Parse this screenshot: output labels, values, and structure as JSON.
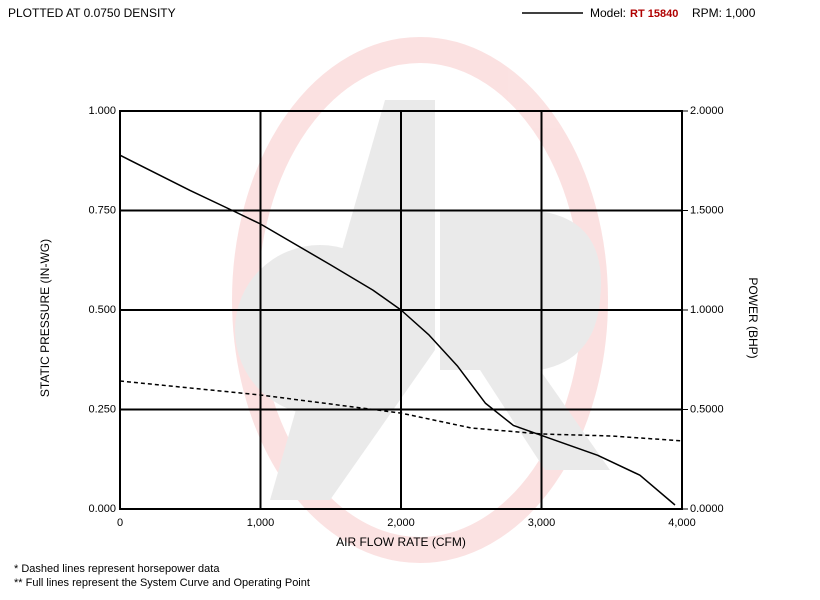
{
  "chart_data": {
    "type": "line",
    "note_top": "PLOTTED AT 0.0750 DENSITY",
    "legend": {
      "model_label": "Model:",
      "model": "RT 15840",
      "rpm": "RPM: 1,000"
    },
    "xlabel": "AIR FLOW RATE (CFM)",
    "ylabel": "STATIC PRESSURE (IN-WG)",
    "y2label": "POWER (BHP)",
    "footnotes": [
      "* Dashed lines represent horsepower data",
      "** Full lines represent the System Curve and Operating Point"
    ],
    "xlim": [
      0,
      4000
    ],
    "xticks": [
      0,
      {
        "value": 1000,
        "label": "1,000"
      },
      {
        "value": 2000,
        "label": "2,000"
      },
      {
        "value": 3000,
        "label": "3,000"
      },
      {
        "value": 4000,
        "label": "4,000"
      }
    ],
    "ylim": [
      0,
      1
    ],
    "yticks": [
      {
        "value": 0,
        "label": "0.000"
      },
      {
        "value": 0.25,
        "label": "0.250"
      },
      {
        "value": 0.5,
        "label": "0.500"
      },
      {
        "value": 0.75,
        "label": "0.750"
      },
      {
        "value": 1,
        "label": "1.000"
      }
    ],
    "y2lim": [
      0,
      2
    ],
    "y2ticks": [
      {
        "value": 0,
        "label": "0.0000"
      },
      {
        "value": 0.5,
        "label": "0.5000"
      },
      {
        "value": 1,
        "label": "1.0000"
      },
      {
        "value": 1.5,
        "label": "1.5000"
      },
      {
        "value": 2,
        "label": "2.0000"
      }
    ],
    "grid": true,
    "series": [
      {
        "color": "#000000",
        "dash": false,
        "x": [
          0,
          500,
          800,
          1000,
          1500,
          1800,
          2000,
          2200,
          2400,
          2600,
          2800,
          3000,
          3400,
          3700,
          3950
        ],
        "values": [
          0.889,
          0.8,
          0.75,
          0.716,
          0.613,
          0.55,
          0.5,
          0.437,
          0.36,
          0.266,
          0.21,
          0.185,
          0.135,
          0.085,
          0.01
        ]
      },
      {
        "color": "#000000",
        "dash": true,
        "axis": "y2",
        "x": [
          0,
          1000,
          2000,
          2500,
          3000,
          3500,
          4000
        ],
        "values": [
          0.643,
          0.573,
          0.482,
          0.407,
          0.377,
          0.367,
          0.342
        ]
      }
    ]
  }
}
